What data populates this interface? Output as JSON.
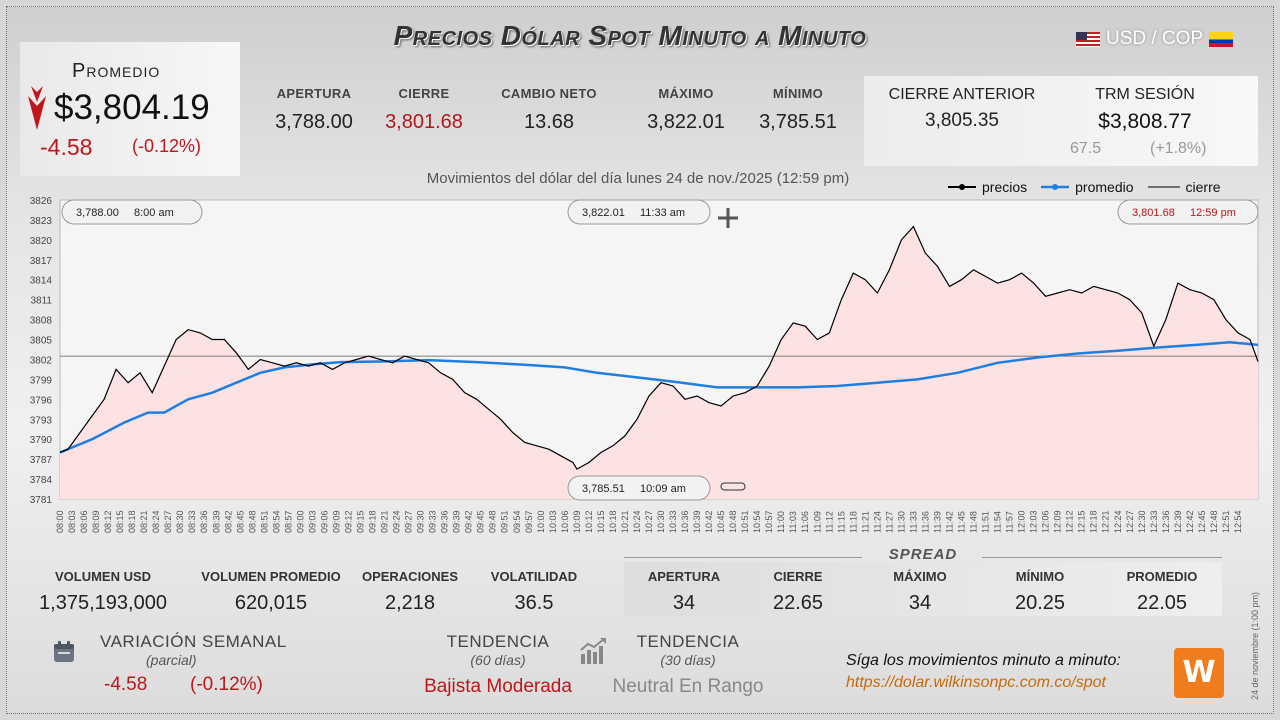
{
  "header": {
    "title": "Precios Dólar Spot Minuto a Minuto",
    "pair": "USD / COP"
  },
  "promedio": {
    "label": "Promedio",
    "value": "$3,804.19",
    "change": "-4.58",
    "change_pct": "(-0.12%)"
  },
  "stats": [
    {
      "label": "APERTURA",
      "value": "3,788.00",
      "color": "#222222"
    },
    {
      "label": "CIERRE",
      "value": "3,801.68",
      "color": "#b4161b"
    },
    {
      "label": "CAMBIO NETO",
      "value": "13.68",
      "color": "#222222"
    },
    {
      "label": "MÁXIMO",
      "value": "3,822.01",
      "color": "#222222"
    },
    {
      "label": "MÍNIMO",
      "value": "3,785.51",
      "color": "#222222"
    }
  ],
  "cierre_anterior": {
    "label": "CIERRE ANTERIOR",
    "value": "3,805.35"
  },
  "trm": {
    "label": "TRM SESIÓN",
    "value": "$3,808.77",
    "diff": "67.5",
    "diff_pct": "(+1.8%)"
  },
  "subtitle": "Movimientos del dólar del día lunes 24 de nov./2025 (12:59 pm)",
  "legend": {
    "precios": "precios",
    "promedio": "promedio",
    "cierre": "cierre"
  },
  "chart_data": {
    "type": "line",
    "x_start": "08:00",
    "x_end": "12:59",
    "ylim": [
      3781,
      3826
    ],
    "yticks": [
      3781,
      3784,
      3787,
      3790,
      3793,
      3796,
      3799,
      3802,
      3805,
      3808,
      3811,
      3814,
      3817,
      3820,
      3823,
      3826
    ],
    "cierre_line": 3802.5,
    "annotations": [
      {
        "label": "3,788.00",
        "time": "8:00 am"
      },
      {
        "label": "3,822.01",
        "time": "11:33 am"
      },
      {
        "label": "3,801.68",
        "time": "12:59 pm"
      },
      {
        "label": "3,785.51",
        "time": "10:09 am"
      }
    ],
    "series": [
      {
        "name": "precios",
        "color": "#000000",
        "points": [
          [
            "08:00",
            3788.0
          ],
          [
            "08:02",
            3788.5
          ],
          [
            "08:05",
            3791.0
          ],
          [
            "08:08",
            3793.5
          ],
          [
            "08:11",
            3796.0
          ],
          [
            "08:14",
            3800.5
          ],
          [
            "08:17",
            3798.5
          ],
          [
            "08:20",
            3800.0
          ],
          [
            "08:23",
            3797.0
          ],
          [
            "08:26",
            3801.0
          ],
          [
            "08:29",
            3805.0
          ],
          [
            "08:32",
            3806.5
          ],
          [
            "08:35",
            3806.0
          ],
          [
            "08:38",
            3805.0
          ],
          [
            "08:41",
            3805.0
          ],
          [
            "08:44",
            3803.0
          ],
          [
            "08:47",
            3800.5
          ],
          [
            "08:50",
            3802.0
          ],
          [
            "08:53",
            3801.5
          ],
          [
            "08:56",
            3801.0
          ],
          [
            "08:59",
            3801.5
          ],
          [
            "09:02",
            3801.0
          ],
          [
            "09:05",
            3801.5
          ],
          [
            "09:08",
            3800.5
          ],
          [
            "09:11",
            3801.5
          ],
          [
            "09:14",
            3802.0
          ],
          [
            "09:17",
            3802.5
          ],
          [
            "09:20",
            3802.0
          ],
          [
            "09:23",
            3801.5
          ],
          [
            "09:26",
            3802.5
          ],
          [
            "09:29",
            3802.0
          ],
          [
            "09:32",
            3801.5
          ],
          [
            "09:35",
            3800.0
          ],
          [
            "09:38",
            3799.0
          ],
          [
            "09:41",
            3797.0
          ],
          [
            "09:44",
            3796.0
          ],
          [
            "09:47",
            3794.5
          ],
          [
            "09:50",
            3793.0
          ],
          [
            "09:53",
            3791.0
          ],
          [
            "09:56",
            3789.5
          ],
          [
            "09:59",
            3789.0
          ],
          [
            "10:02",
            3788.5
          ],
          [
            "10:05",
            3787.5
          ],
          [
            "10:08",
            3786.5
          ],
          [
            "10:09",
            3785.5
          ],
          [
            "10:12",
            3786.5
          ],
          [
            "10:15",
            3788.0
          ],
          [
            "10:18",
            3789.0
          ],
          [
            "10:21",
            3790.5
          ],
          [
            "10:24",
            3793.0
          ],
          [
            "10:27",
            3796.5
          ],
          [
            "10:30",
            3798.5
          ],
          [
            "10:33",
            3798.0
          ],
          [
            "10:36",
            3796.0
          ],
          [
            "10:39",
            3796.5
          ],
          [
            "10:42",
            3795.5
          ],
          [
            "10:45",
            3795.0
          ],
          [
            "10:48",
            3796.5
          ],
          [
            "10:51",
            3797.0
          ],
          [
            "10:54",
            3798.0
          ],
          [
            "10:57",
            3801.0
          ],
          [
            "11:00",
            3805.0
          ],
          [
            "11:03",
            3807.5
          ],
          [
            "11:06",
            3807.0
          ],
          [
            "11:09",
            3805.0
          ],
          [
            "11:12",
            3806.0
          ],
          [
            "11:15",
            3811.0
          ],
          [
            "11:18",
            3815.0
          ],
          [
            "11:21",
            3814.0
          ],
          [
            "11:24",
            3812.0
          ],
          [
            "11:27",
            3815.5
          ],
          [
            "11:30",
            3820.0
          ],
          [
            "11:33",
            3822.0
          ],
          [
            "11:36",
            3818.0
          ],
          [
            "11:39",
            3816.0
          ],
          [
            "11:42",
            3813.0
          ],
          [
            "11:45",
            3814.0
          ],
          [
            "11:48",
            3815.5
          ],
          [
            "11:51",
            3814.5
          ],
          [
            "11:54",
            3813.5
          ],
          [
            "11:57",
            3814.0
          ],
          [
            "12:00",
            3815.0
          ],
          [
            "12:03",
            3813.5
          ],
          [
            "12:06",
            3811.5
          ],
          [
            "12:09",
            3812.0
          ],
          [
            "12:12",
            3812.5
          ],
          [
            "12:15",
            3812.0
          ],
          [
            "12:18",
            3813.0
          ],
          [
            "12:21",
            3812.5
          ],
          [
            "12:24",
            3812.0
          ],
          [
            "12:27",
            3811.0
          ],
          [
            "12:30",
            3809.0
          ],
          [
            "12:33",
            3804.0
          ],
          [
            "12:36",
            3808.0
          ],
          [
            "12:39",
            3813.5
          ],
          [
            "12:42",
            3812.5
          ],
          [
            "12:45",
            3812.0
          ],
          [
            "12:48",
            3811.0
          ],
          [
            "12:51",
            3808.0
          ],
          [
            "12:54",
            3806.0
          ],
          [
            "12:57",
            3805.0
          ],
          [
            "12:59",
            3801.68
          ]
        ]
      },
      {
        "name": "promedio",
        "color": "#1e7fe0",
        "points": [
          [
            "08:00",
            3788.0
          ],
          [
            "08:08",
            3790.0
          ],
          [
            "08:16",
            3792.5
          ],
          [
            "08:22",
            3794.0
          ],
          [
            "08:26",
            3794.0
          ],
          [
            "08:32",
            3796.0
          ],
          [
            "08:38",
            3797.0
          ],
          [
            "08:44",
            3798.5
          ],
          [
            "08:50",
            3800.0
          ],
          [
            "08:56",
            3800.8
          ],
          [
            "09:02",
            3801.2
          ],
          [
            "09:10",
            3801.6
          ],
          [
            "09:20",
            3801.7
          ],
          [
            "09:32",
            3801.9
          ],
          [
            "09:44",
            3801.6
          ],
          [
            "09:56",
            3801.2
          ],
          [
            "10:06",
            3800.8
          ],
          [
            "10:14",
            3800.0
          ],
          [
            "10:24",
            3799.3
          ],
          [
            "10:34",
            3798.6
          ],
          [
            "10:44",
            3797.8
          ],
          [
            "10:54",
            3797.8
          ],
          [
            "11:04",
            3797.8
          ],
          [
            "11:14",
            3798.0
          ],
          [
            "11:24",
            3798.5
          ],
          [
            "11:34",
            3799.0
          ],
          [
            "11:44",
            3800.0
          ],
          [
            "11:54",
            3801.5
          ],
          [
            "12:04",
            3802.3
          ],
          [
            "12:14",
            3802.9
          ],
          [
            "12:24",
            3803.3
          ],
          [
            "12:34",
            3803.8
          ],
          [
            "12:44",
            3804.2
          ],
          [
            "12:52",
            3804.6
          ],
          [
            "12:59",
            3804.19
          ]
        ]
      }
    ]
  },
  "volume": [
    {
      "label": "VOLUMEN USD",
      "value": "1,375,193,000"
    },
    {
      "label": "VOLUMEN PROMEDIO",
      "value": "620,015"
    },
    {
      "label": "OPERACIONES",
      "value": "2,218"
    },
    {
      "label": "VOLATILIDAD",
      "value": "36.5"
    }
  ],
  "spread": {
    "title": "SPREAD",
    "items": [
      {
        "label": "APERTURA",
        "value": "34"
      },
      {
        "label": "CIERRE",
        "value": "22.65"
      },
      {
        "label": "MÁXIMO",
        "value": "34"
      },
      {
        "label": "MÍNIMO",
        "value": "20.25"
      },
      {
        "label": "PROMEDIO",
        "value": "22.05"
      }
    ]
  },
  "variacion": {
    "label": "VARIACIÓN SEMANAL",
    "sub": "(parcial)",
    "value": "-4.58",
    "pct": "(-0.12%)"
  },
  "tendencia_60": {
    "label": "TENDENCIA",
    "sub": "(60 días)",
    "value": "Bajista Moderada",
    "color": "#c0161b"
  },
  "tendencia_30": {
    "label": "TENDENCIA",
    "sub": "(30 días)",
    "value": "Neutral En Rango",
    "color": "#888888"
  },
  "promo": {
    "text": "Síga los movimientos minuto a minuto:",
    "url": "https://dolar.wilkinsonpc.com.co/spot"
  },
  "side_date": "24 de noviembre (1:00 pm)",
  "icons": {
    "calendar": "calendar-icon",
    "trend": "bar-chart-icon",
    "logo": "wilkinson-logo",
    "move": "move-cross-icon"
  }
}
